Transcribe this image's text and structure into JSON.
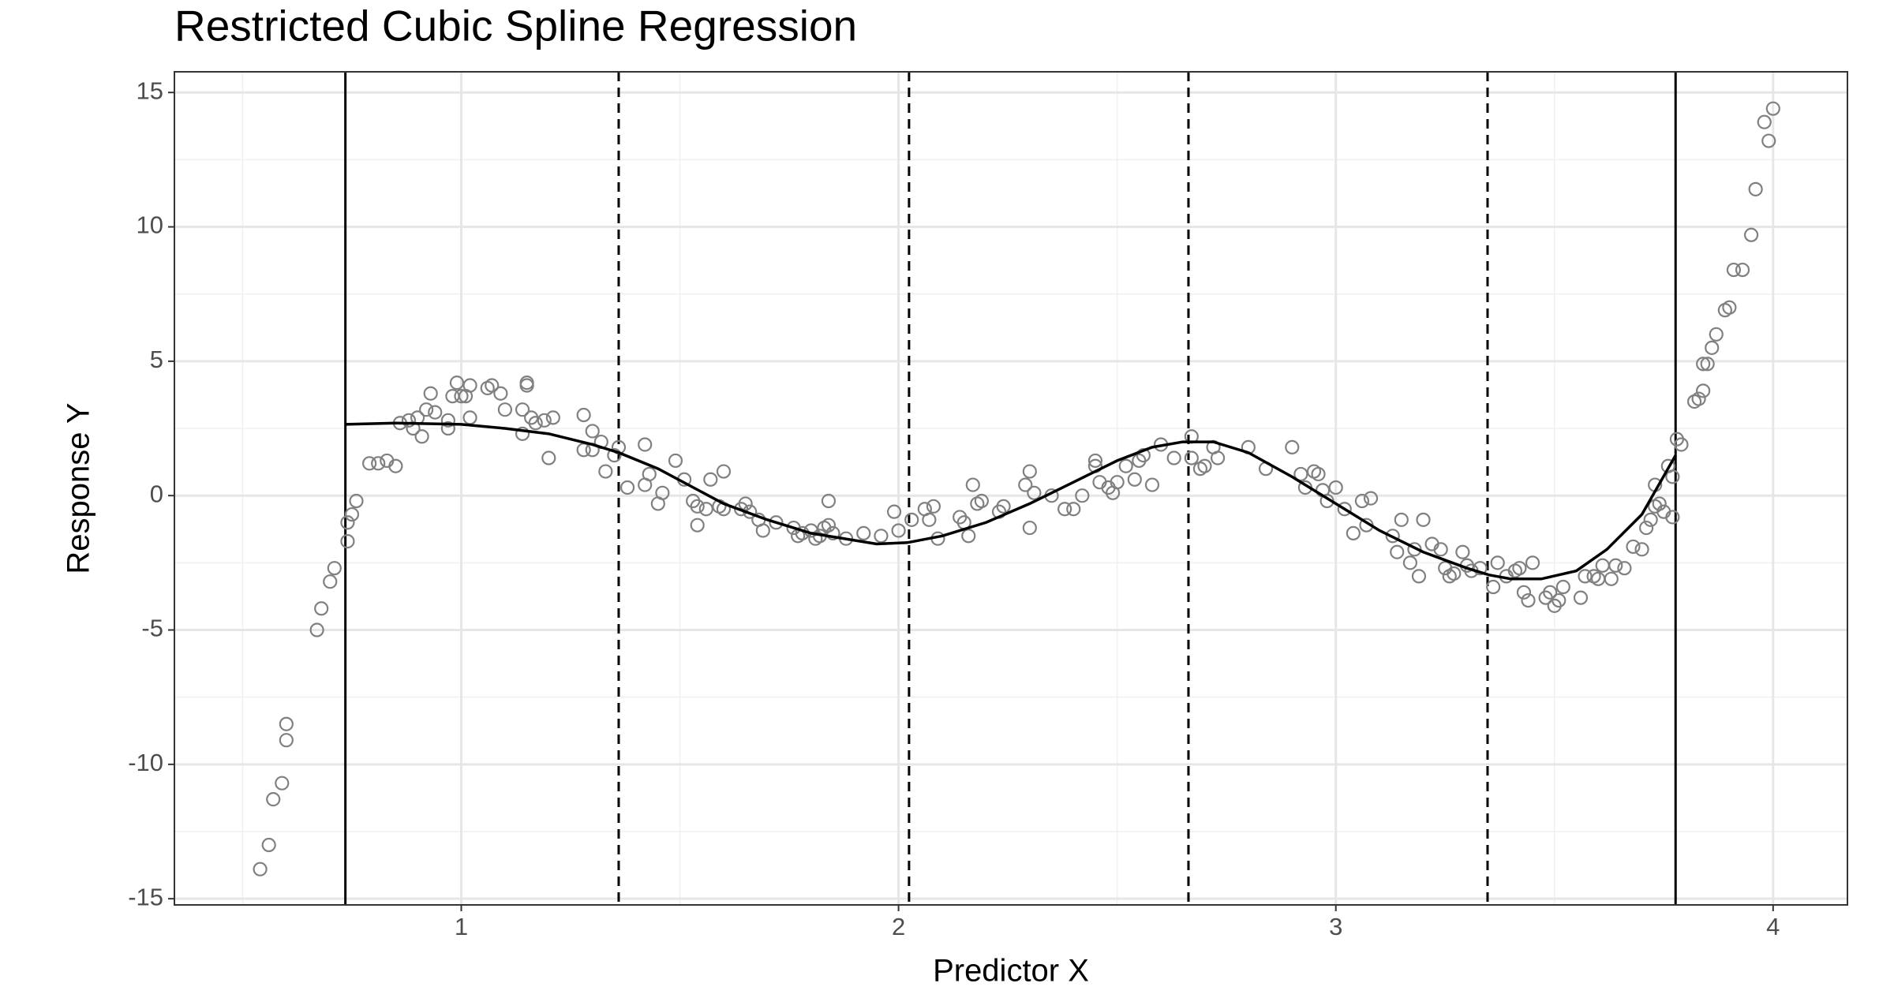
{
  "chart_data": {
    "type": "spline",
    "title": "Restricted Cubic Spline Regression",
    "x_label": "Predictor X",
    "y_label": "Response Y",
    "xlim": [
      0.344,
      4.17
    ],
    "ylim": [
      -15.23,
      15.77
    ],
    "xticks": [
      1,
      2,
      3,
      4
    ],
    "yticks": [
      -15,
      -10,
      -5,
      0,
      5,
      10,
      15
    ],
    "xminor": [
      0.5,
      1.5,
      2.5,
      3.5
    ],
    "yminor": [
      -12.5,
      -7.5,
      -2.5,
      2.5,
      7.5,
      12.5
    ],
    "grid": true,
    "points": {
      "color": "#808080",
      "x": [
        0.54,
        0.56,
        0.57,
        0.59,
        0.6,
        0.6,
        0.67,
        0.68,
        0.7,
        0.71,
        0.74,
        0.74,
        0.76,
        0.75,
        0.79,
        0.81,
        0.83,
        0.85,
        0.86,
        0.88,
        0.89,
        0.9,
        0.91,
        0.92,
        0.93,
        0.94,
        0.97,
        0.97,
        0.98,
        1.0,
        0.99,
        1.01,
        1.02,
        1.02,
        1.06,
        1.07,
        1.09,
        1.1,
        1.14,
        1.14,
        1.15,
        1.15,
        1.16,
        1.17,
        1.19,
        1.2,
        1.21,
        1.28,
        1.28,
        1.3,
        1.3,
        1.32,
        1.33,
        1.35,
        1.36,
        1.38,
        1.42,
        1.42,
        1.43,
        1.45,
        1.46,
        1.49,
        1.51,
        1.53,
        1.54,
        1.54,
        1.56,
        1.57,
        1.59,
        1.6,
        1.6,
        1.64,
        1.65,
        1.66,
        1.68,
        1.69,
        1.72,
        1.76,
        1.77,
        1.78,
        1.8,
        1.81,
        1.82,
        1.83,
        1.84,
        1.84,
        1.85,
        1.88,
        1.92,
        1.96,
        1.99,
        2.0,
        2.03,
        2.06,
        2.07,
        2.08,
        2.09,
        2.14,
        2.15,
        2.16,
        2.17,
        2.18,
        2.19,
        2.23,
        2.24,
        2.29,
        2.3,
        2.3,
        2.31,
        2.35,
        2.38,
        2.4,
        2.42,
        2.45,
        2.45,
        2.46,
        2.48,
        2.49,
        2.5,
        2.52,
        2.54,
        2.55,
        2.56,
        2.58,
        2.6,
        2.63,
        2.67,
        2.67,
        2.69,
        2.7,
        2.72,
        2.73,
        2.8,
        2.84,
        2.9,
        2.92,
        2.93,
        2.95,
        2.96,
        2.97,
        2.98,
        3.0,
        3.02,
        3.04,
        3.06,
        3.07,
        3.08,
        3.13,
        3.14,
        3.15,
        3.17,
        3.18,
        3.19,
        3.2,
        3.22,
        3.24,
        3.25,
        3.26,
        3.27,
        3.29,
        3.3,
        3.31,
        3.33,
        3.36,
        3.37,
        3.39,
        3.41,
        3.42,
        3.43,
        3.44,
        3.45,
        3.48,
        3.49,
        3.5,
        3.51,
        3.52,
        3.56,
        3.57,
        3.59,
        3.6,
        3.61,
        3.63,
        3.64,
        3.66,
        3.68,
        3.7,
        3.71,
        3.72,
        3.73,
        3.73,
        3.74,
        3.75,
        3.76,
        3.77,
        3.77,
        3.78,
        3.79,
        3.82,
        3.83,
        3.84,
        3.84,
        3.85,
        3.86,
        3.87,
        3.89,
        3.9,
        3.91,
        3.93,
        3.95,
        3.96,
        3.98,
        3.99,
        4.0
      ],
      "y": [
        -13.9,
        -13.0,
        -11.3,
        -10.7,
        -8.5,
        -9.1,
        -5.0,
        -4.2,
        -3.2,
        -2.7,
        -1.0,
        -1.7,
        -0.2,
        -0.7,
        1.2,
        1.2,
        1.3,
        1.1,
        2.7,
        2.8,
        2.5,
        2.9,
        2.2,
        3.2,
        3.8,
        3.1,
        2.5,
        2.8,
        3.7,
        3.7,
        4.2,
        3.7,
        2.9,
        4.1,
        4.0,
        4.1,
        3.8,
        3.2,
        3.2,
        2.3,
        4.1,
        4.2,
        2.9,
        2.7,
        2.8,
        1.4,
        2.9,
        3.0,
        1.7,
        1.7,
        2.4,
        2.0,
        0.9,
        1.5,
        1.8,
        0.3,
        1.9,
        0.4,
        0.8,
        -0.3,
        0.1,
        1.3,
        0.6,
        -0.2,
        -0.4,
        -1.1,
        -0.5,
        0.6,
        -0.4,
        0.9,
        -0.5,
        -0.5,
        -0.3,
        -0.6,
        -0.9,
        -1.3,
        -1.0,
        -1.2,
        -1.5,
        -1.4,
        -1.3,
        -1.6,
        -1.5,
        -1.2,
        -0.2,
        -1.1,
        -1.4,
        -1.6,
        -1.4,
        -1.5,
        -0.6,
        -1.3,
        -0.9,
        -0.5,
        -0.9,
        -0.4,
        -1.6,
        -0.8,
        -1.0,
        -1.5,
        0.4,
        -0.3,
        -0.2,
        -0.6,
        -0.4,
        0.4,
        0.9,
        -1.2,
        0.1,
        0.0,
        -0.5,
        -0.5,
        0.0,
        1.3,
        1.1,
        0.5,
        0.3,
        0.1,
        0.5,
        1.1,
        0.6,
        1.3,
        1.5,
        0.4,
        1.9,
        1.4,
        2.2,
        1.4,
        1.0,
        1.1,
        1.8,
        1.4,
        1.8,
        1.0,
        1.8,
        0.8,
        0.3,
        0.9,
        0.8,
        0.2,
        -0.2,
        0.3,
        -0.5,
        -1.4,
        -0.2,
        -1.1,
        -0.1,
        -1.5,
        -2.1,
        -0.9,
        -2.5,
        -2.0,
        -3.0,
        -0.9,
        -1.8,
        -2.0,
        -2.7,
        -3.0,
        -2.9,
        -2.1,
        -2.6,
        -2.8,
        -2.7,
        -3.4,
        -2.5,
        -3.0,
        -2.8,
        -2.7,
        -3.6,
        -3.9,
        -2.5,
        -3.8,
        -3.6,
        -4.1,
        -3.9,
        -3.4,
        -3.8,
        -3.0,
        -3.0,
        -3.1,
        -2.6,
        -3.1,
        -2.6,
        -2.7,
        -1.9,
        -2.0,
        -1.2,
        -0.9,
        -0.4,
        0.4,
        -0.3,
        -0.6,
        1.1,
        -0.8,
        0.7,
        2.1,
        1.9,
        3.5,
        3.6,
        3.9,
        4.9,
        4.9,
        5.5,
        6.0,
        6.9,
        7.0,
        8.4,
        8.4,
        9.7,
        11.4,
        13.9,
        13.2,
        14.4
      ]
    },
    "fit": {
      "color": "#000000",
      "x": [
        0.735,
        0.85,
        1.0,
        1.1,
        1.2,
        1.3,
        1.36,
        1.45,
        1.6,
        1.7,
        1.8,
        1.95,
        2.02,
        2.1,
        2.2,
        2.3,
        2.4,
        2.5,
        2.58,
        2.65,
        2.72,
        2.8,
        2.9,
        3.0,
        3.1,
        3.2,
        3.3,
        3.35,
        3.4,
        3.47,
        3.55,
        3.62,
        3.7,
        3.777
      ],
      "y": [
        2.65,
        2.7,
        2.65,
        2.5,
        2.3,
        1.9,
        1.6,
        1.0,
        -0.3,
        -0.9,
        -1.4,
        -1.8,
        -1.75,
        -1.5,
        -1.0,
        -0.3,
        0.5,
        1.3,
        1.8,
        2.0,
        2.0,
        1.6,
        0.7,
        -0.3,
        -1.3,
        -2.1,
        -2.7,
        -2.95,
        -3.1,
        -3.1,
        -2.8,
        -2.0,
        -0.7,
        1.5
      ]
    },
    "knots": [
      {
        "x": 0.735,
        "style": "solid"
      },
      {
        "x": 1.36,
        "style": "dashed"
      },
      {
        "x": 2.024,
        "style": "dashed"
      },
      {
        "x": 2.663,
        "style": "dashed"
      },
      {
        "x": 3.347,
        "style": "dashed"
      },
      {
        "x": 3.777,
        "style": "solid"
      }
    ]
  }
}
